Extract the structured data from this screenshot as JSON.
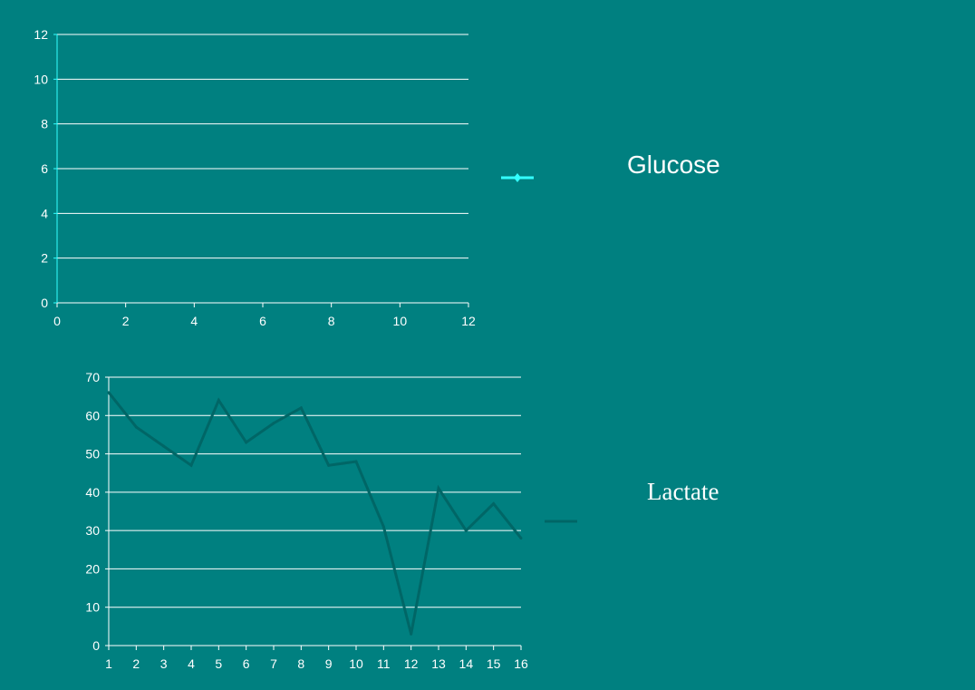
{
  "colors": {
    "background": "#008080",
    "gridline": "#ffffff",
    "axis_text": "#ffffff",
    "glucose_line": "#33ffff",
    "lactate_line": "#006666"
  },
  "chart_data": [
    {
      "type": "line",
      "x_ticks": [
        "0",
        "2",
        "4",
        "6",
        "8",
        "10",
        "12"
      ],
      "y_ticks": [
        "0",
        "2",
        "4",
        "6",
        "8",
        "10",
        "12"
      ],
      "xlim": [
        0,
        12
      ],
      "ylim": [
        0,
        12
      ],
      "grid": true,
      "legend_placement": "right",
      "series": [
        {
          "name": "Glucose",
          "x": [],
          "values": []
        }
      ]
    },
    {
      "type": "line",
      "x_ticks": [
        "1",
        "2",
        "3",
        "4",
        "5",
        "6",
        "7",
        "8",
        "9",
        "10",
        "11",
        "12",
        "13",
        "14",
        "15",
        "16"
      ],
      "y_ticks": [
        "0",
        "10",
        "20",
        "30",
        "40",
        "50",
        "60",
        "70"
      ],
      "xlim": [
        1,
        16
      ],
      "ylim": [
        0,
        70
      ],
      "grid": true,
      "legend_placement": "right",
      "series": [
        {
          "name": "Lactate",
          "x": [
            1,
            2,
            3,
            4,
            5,
            6,
            7,
            8,
            9,
            10,
            11,
            12,
            13,
            14,
            15,
            16
          ],
          "values": [
            66,
            57,
            52,
            47,
            64,
            53,
            58,
            62,
            47,
            48,
            31,
            3,
            41,
            30,
            37,
            28
          ]
        }
      ]
    }
  ]
}
